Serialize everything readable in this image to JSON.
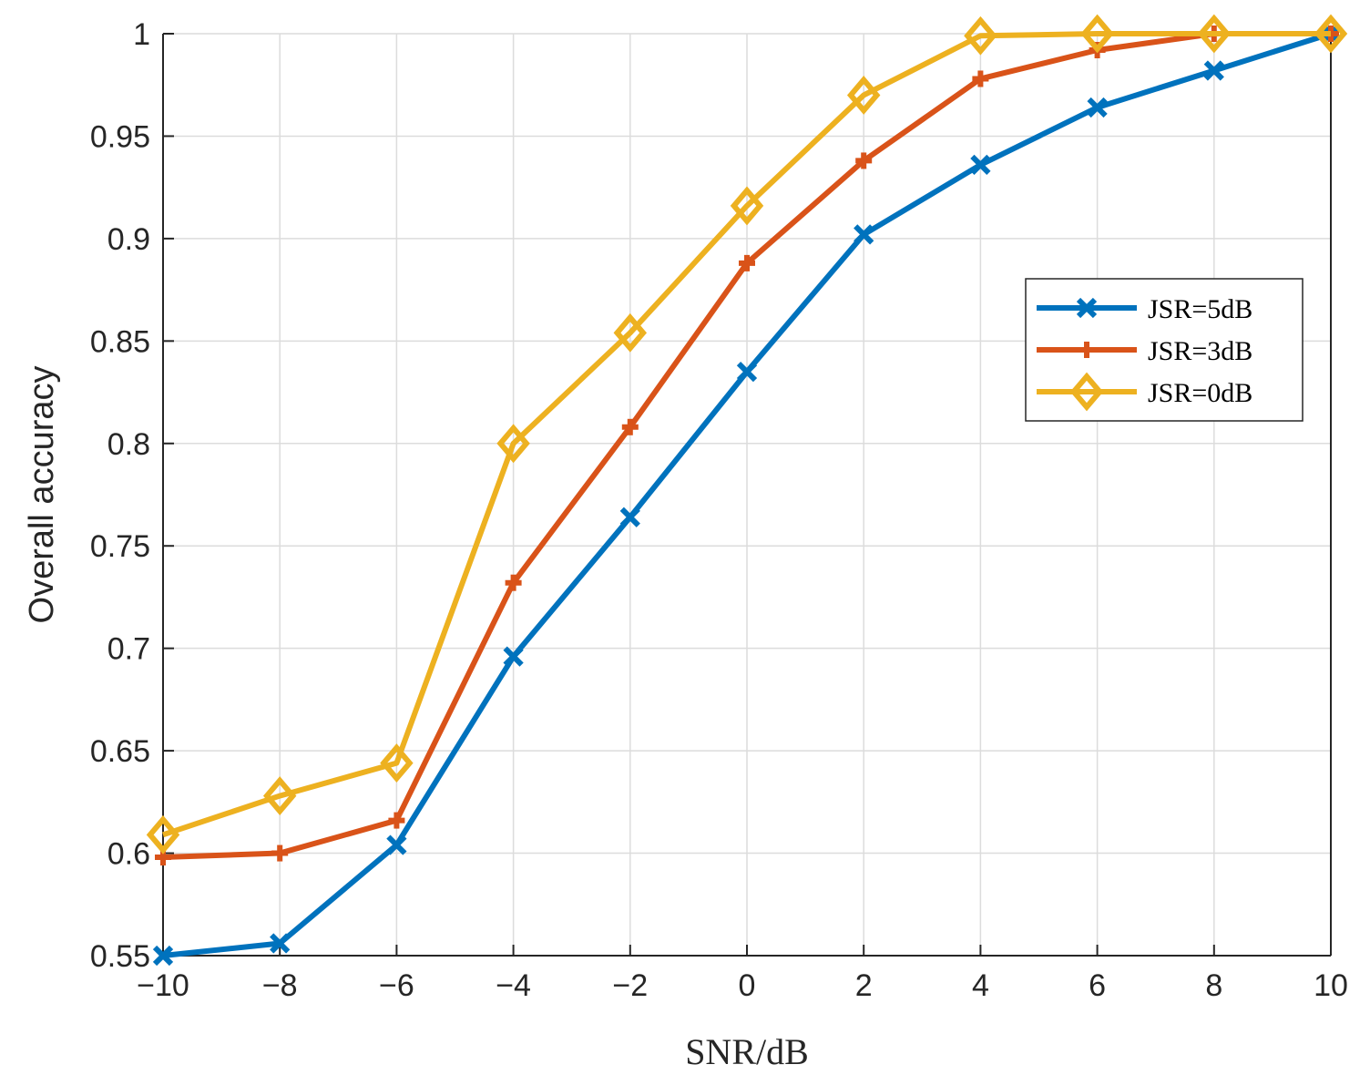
{
  "chart_data": {
    "type": "line",
    "title": "",
    "xlabel": "SNR/dB",
    "ylabel": "Overall accuracy",
    "x": [
      -10,
      -8,
      -6,
      -4,
      -2,
      0,
      2,
      4,
      6,
      8,
      10
    ],
    "xlim": [
      -10,
      10
    ],
    "ylim": [
      0.55,
      1
    ],
    "xticks": [
      -10,
      -8,
      -6,
      -4,
      -2,
      0,
      2,
      4,
      6,
      8,
      10
    ],
    "xtick_labels": [
      "−10",
      "−8",
      "−6",
      "−4",
      "−2",
      "0",
      "2",
      "4",
      "6",
      "8",
      "10"
    ],
    "yticks": [
      0.55,
      0.6,
      0.65,
      0.7,
      0.75,
      0.8,
      0.85,
      0.9,
      0.95,
      1
    ],
    "ytick_labels": [
      "0.55",
      "0.6",
      "0.65",
      "0.7",
      "0.75",
      "0.8",
      "0.85",
      "0.9",
      "0.95",
      "1"
    ],
    "grid": true,
    "legend_position": "right",
    "series": [
      {
        "name": "JSR=5dB",
        "color": "#0072BD",
        "marker": "x",
        "values": [
          0.55,
          0.556,
          0.604,
          0.696,
          0.764,
          0.835,
          0.902,
          0.936,
          0.964,
          0.982,
          1.0
        ]
      },
      {
        "name": "JSR=3dB",
        "color": "#D95319",
        "marker": "+",
        "values": [
          0.598,
          0.6,
          0.616,
          0.732,
          0.808,
          0.888,
          0.938,
          0.978,
          0.992,
          1.0,
          1.0
        ]
      },
      {
        "name": "JSR=0dB",
        "color": "#EDB120",
        "marker": "diamond",
        "values": [
          0.609,
          0.628,
          0.644,
          0.8,
          0.854,
          0.916,
          0.97,
          0.999,
          1.0,
          1.0,
          1.0
        ]
      }
    ]
  }
}
